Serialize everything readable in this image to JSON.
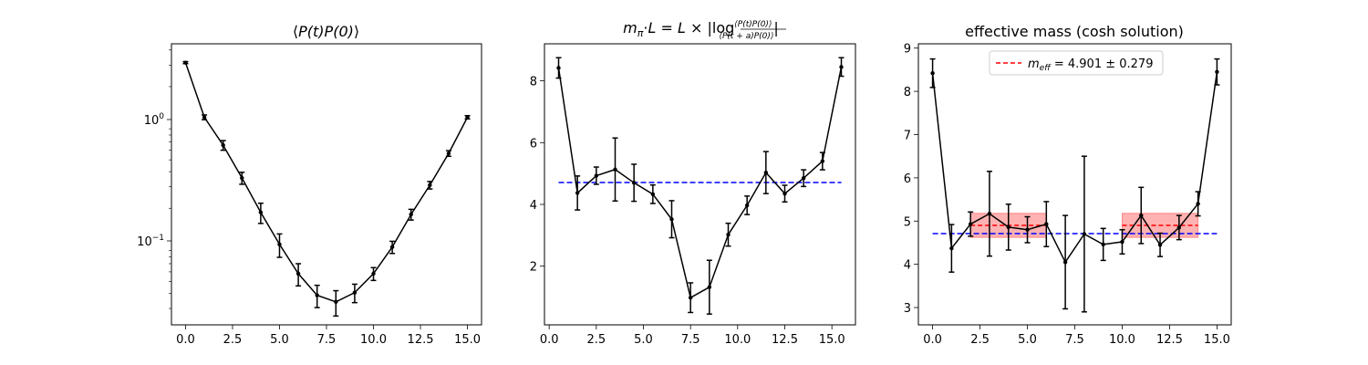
{
  "chart_data": [
    {
      "type": "line",
      "title_parts": [
        "⟨",
        "P(t)P(0)",
        "⟩"
      ],
      "yscale": "log",
      "xlim": [
        -0.75,
        15.75
      ],
      "ylim": [
        0.022,
        4.5
      ],
      "xticks": [
        0,
        2.5,
        5,
        7.5,
        10,
        12.5,
        15
      ],
      "xtick_labels": [
        "0.0",
        "2.5",
        "5.0",
        "7.5",
        "10.0",
        "12.5",
        "15.0"
      ],
      "ytick_labels": [
        {
          "value": 1,
          "base": "10",
          "exp": "0"
        },
        {
          "value": 0.1,
          "base": "10",
          "exp": "−1"
        }
      ],
      "series": [
        {
          "x": [
            0,
            1,
            2,
            3,
            4,
            5,
            6,
            7,
            8,
            9,
            10,
            11,
            12,
            13,
            14,
            15
          ],
          "y": [
            3.15,
            1.12,
            0.66,
            0.355,
            0.185,
            0.101,
            0.058,
            0.0385,
            0.034,
            0.0405,
            0.058,
            0.096,
            0.178,
            0.31,
            0.565,
            1.12
          ],
          "yerr": [
            0.06,
            0.05,
            0.06,
            0.04,
            0.035,
            0.022,
            0.012,
            0.008,
            0.008,
            0.007,
            0.007,
            0.011,
            0.018,
            0.022,
            0.03,
            0.035
          ],
          "color": "#000000"
        }
      ]
    },
    {
      "type": "line",
      "title_text": "m_π·L = L × |log ⟨P(t)P(0)⟩ / ⟨P(t+a)P(0)⟩|",
      "xlim": [
        -0.25,
        16.25
      ],
      "ylim": [
        0.1,
        9.2
      ],
      "xticks": [
        0,
        2.5,
        5,
        7.5,
        10,
        12.5,
        15
      ],
      "xtick_labels": [
        "0.0",
        "2.5",
        "5.0",
        "7.5",
        "10.0",
        "12.5",
        "15.0"
      ],
      "yticks": [
        2,
        4,
        6,
        8
      ],
      "ytick_labels": [
        "2",
        "4",
        "6",
        "8"
      ],
      "series": [
        {
          "x": [
            0.5,
            1.5,
            2.5,
            3.5,
            4.5,
            5.5,
            6.5,
            7.5,
            8.5,
            9.5,
            10.5,
            11.5,
            12.5,
            13.5,
            14.5,
            15.5
          ],
          "y": [
            8.42,
            4.37,
            4.93,
            5.13,
            4.7,
            4.33,
            3.52,
            0.98,
            1.32,
            3.02,
            3.97,
            5.03,
            4.35,
            4.85,
            5.4,
            8.45
          ],
          "yerr": [
            0.33,
            0.55,
            0.28,
            1.02,
            0.6,
            0.3,
            0.6,
            0.48,
            0.87,
            0.37,
            0.3,
            0.68,
            0.27,
            0.27,
            0.28,
            0.3
          ],
          "color": "#000000"
        }
      ],
      "hlines": [
        {
          "y": 4.71,
          "color": "#0000ff",
          "xmin": 0.5,
          "xmax": 15.5
        }
      ]
    },
    {
      "type": "line",
      "title": "effective mass (cosh solution)",
      "xlim": [
        -0.75,
        15.75
      ],
      "ylim": [
        2.6,
        9.1
      ],
      "xticks": [
        0,
        2.5,
        5,
        7.5,
        10,
        12.5,
        15
      ],
      "xtick_labels": [
        "0.0",
        "2.5",
        "5.0",
        "7.5",
        "10.0",
        "12.5",
        "15.0"
      ],
      "yticks": [
        3,
        4,
        5,
        6,
        7,
        8,
        9
      ],
      "ytick_labels": [
        "3",
        "4",
        "5",
        "6",
        "7",
        "8",
        "9"
      ],
      "series": [
        {
          "x": [
            0,
            1,
            2,
            3,
            4,
            5,
            6,
            7,
            8,
            9,
            10,
            11,
            12,
            13,
            14,
            15
          ],
          "y": [
            8.42,
            4.37,
            4.93,
            5.17,
            4.86,
            4.8,
            4.93,
            4.05,
            4.7,
            4.46,
            4.52,
            5.13,
            4.45,
            4.85,
            5.4,
            8.45
          ],
          "yerr": [
            0.33,
            0.55,
            0.28,
            0.98,
            0.53,
            0.3,
            0.52,
            1.08,
            1.8,
            0.37,
            0.28,
            0.65,
            0.27,
            0.28,
            0.28,
            0.3
          ],
          "color": "#000000"
        }
      ],
      "hlines": [
        {
          "y": 4.71,
          "color": "#0000ff",
          "xmin": 0,
          "xmax": 15
        }
      ],
      "bands": [
        {
          "xmin": 2,
          "xmax": 6,
          "center": 4.901,
          "err": 0.279,
          "color": "#ff0000"
        },
        {
          "xmin": 10,
          "xmax": 14,
          "center": 4.901,
          "err": 0.279,
          "color": "#ff0000"
        }
      ],
      "legend": {
        "position": "top-center",
        "symbol_base": "m",
        "symbol_sub": "eff",
        "value_text": " = 4.901 ± 0.279",
        "color": "#ff0000"
      }
    }
  ]
}
